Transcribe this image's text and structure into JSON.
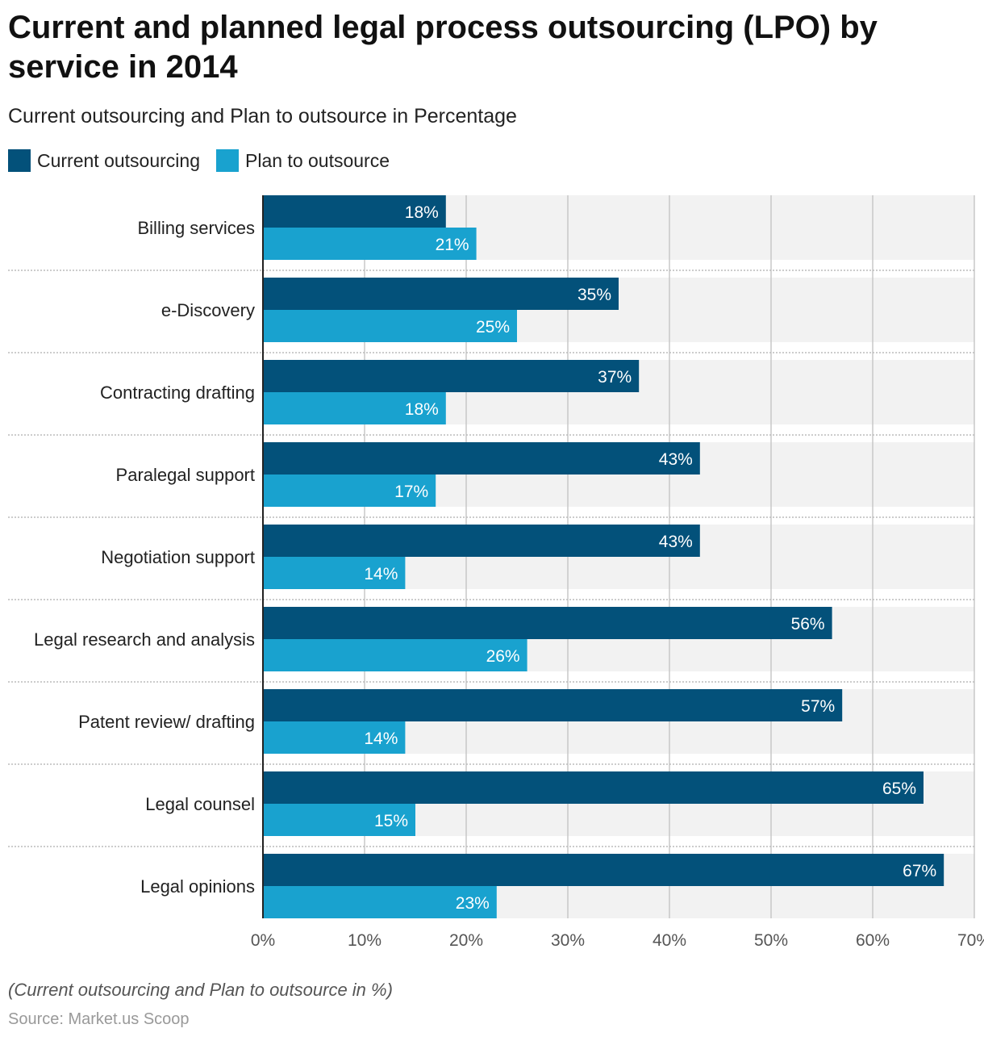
{
  "colors": {
    "current": "#03517a",
    "plan": "#19a2cf",
    "band": "#f2f2f2",
    "grid": "#c8c8c8"
  },
  "chart_data": {
    "type": "bar",
    "orientation": "horizontal",
    "title": "Current and planned legal process outsourcing (LPO) by service in 2014",
    "subtitle": "Current outsourcing and Plan to outsource in Percentage",
    "categories": [
      "Billing services",
      "e-Discovery",
      "Contracting drafting",
      "Paralegal support",
      "Negotiation support",
      "Legal research and analysis",
      "Patent review/ drafting",
      "Legal counsel",
      "Legal opinions"
    ],
    "series": [
      {
        "name": "Current outsourcing",
        "values": [
          18,
          35,
          37,
          43,
          43,
          56,
          57,
          65,
          67
        ]
      },
      {
        "name": "Plan to outsource",
        "values": [
          21,
          25,
          18,
          17,
          14,
          26,
          14,
          15,
          23
        ]
      }
    ],
    "xlim": [
      0,
      70
    ],
    "xticks": [
      "0%",
      "10%",
      "20%",
      "30%",
      "40%",
      "50%",
      "60%",
      "70%"
    ],
    "grid": true,
    "legend": "top-left",
    "note": "(Current outsourcing and Plan to outsource in %)",
    "source": "Source: Market.us Scoop"
  }
}
